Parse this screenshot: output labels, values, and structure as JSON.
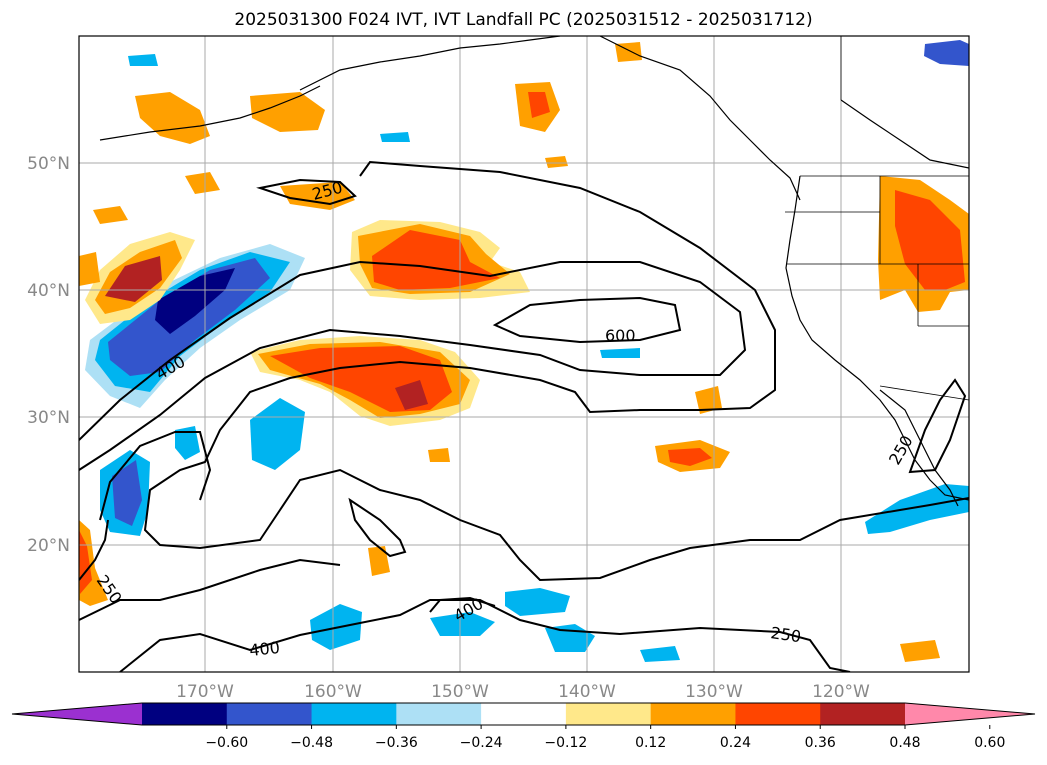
{
  "title": "2025031300 F024 IVT, IVT Landfall PC (2025031512 - 2025031712)",
  "lat_labels": [
    "50°N",
    "40°N",
    "30°N",
    "20°N"
  ],
  "lon_labels": [
    "170°W",
    "160°W",
    "150°W",
    "140°W",
    "130°W",
    "120°W"
  ],
  "contour_labels": [
    "250",
    "600",
    "400",
    "400",
    "250",
    "400",
    "250",
    "250"
  ],
  "colorbar": {
    "tick_labels": [
      "−0.60",
      "−0.48",
      "−0.36",
      "−0.24",
      "−0.12",
      "0.12",
      "0.24",
      "0.36",
      "0.48",
      "0.60"
    ],
    "colors": [
      "#9b30d0",
      "#000080",
      "#3355cc",
      "#00b4f0",
      "#ade0f5",
      "#ffffff",
      "#ffe88a",
      "#ffa000",
      "#ff4500",
      "#b22222",
      "#ff88aa"
    ]
  },
  "chart_data": {
    "type": "map",
    "title": "2025031300 F024 IVT, IVT Landfall PC (2025031512 - 2025031712)",
    "lon_range": [
      -180,
      -110
    ],
    "lat_range": [
      10,
      60
    ],
    "grid": true,
    "fill_levels": [
      -0.6,
      -0.48,
      -0.36,
      -0.24,
      -0.12,
      0.12,
      0.24,
      0.36,
      0.48,
      0.6
    ],
    "contour_levels": [
      250,
      400,
      600
    ],
    "colorbar_position": "bottom"
  }
}
